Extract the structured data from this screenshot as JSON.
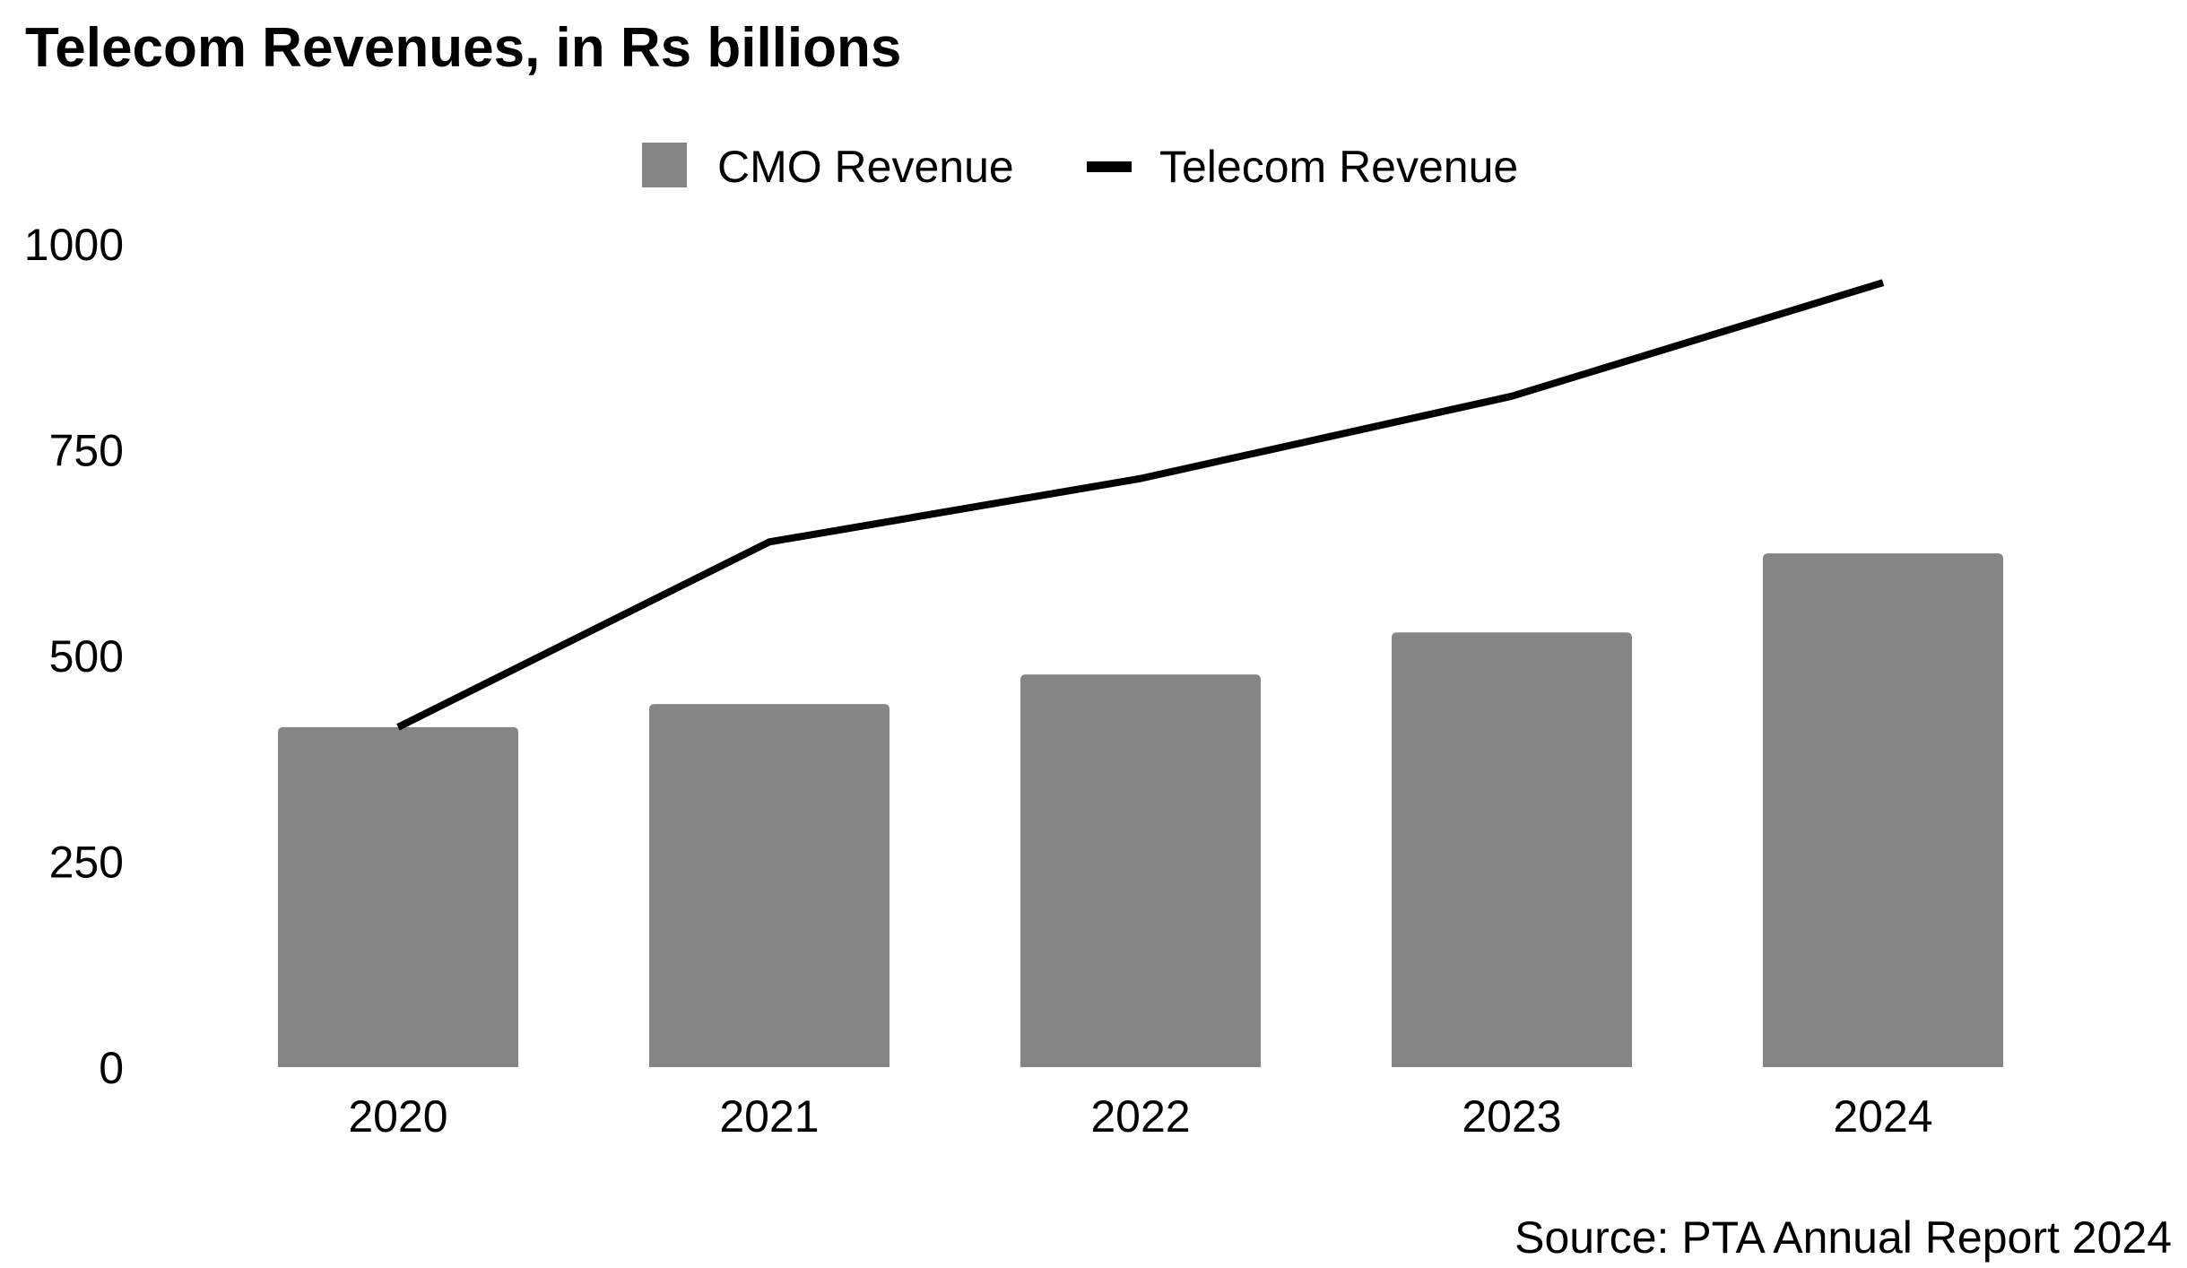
{
  "chart_data": {
    "type": "bar",
    "title": "Telecom Revenues, in Rs billions",
    "source": "Source: PTA Annual Report 2024",
    "categories": [
      "2020",
      "2021",
      "2022",
      "2023",
      "2024"
    ],
    "series": [
      {
        "name": "CMO Revenue",
        "type": "bar",
        "color": "#858585",
        "values": [
          413,
          441,
          477,
          528,
          624
        ]
      },
      {
        "name": "Telecom Revenue",
        "type": "line",
        "color": "#000000",
        "values": [
          413,
          638,
          715,
          815,
          953
        ]
      }
    ],
    "yticks": [
      "0",
      "250",
      "500",
      "750",
      "1000"
    ],
    "ylim": [
      0,
      1000
    ],
    "xlabel": "",
    "ylabel": "",
    "grid": false,
    "legend": "top-center"
  }
}
